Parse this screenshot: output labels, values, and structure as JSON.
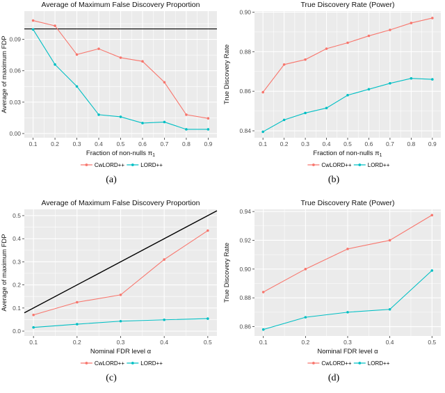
{
  "colors": {
    "cwlord": "#F8766D",
    "lord": "#00BFC4",
    "panel_bg": "#EBEBEB",
    "grid": "#FFFFFF",
    "axis_text": "#4D4D4D",
    "tick_mark": "#333333",
    "ref_line": "#000000",
    "title_text": "#111111",
    "background": "#FFFFFF"
  },
  "legend": {
    "items": [
      {
        "label": "CwLORD++",
        "color": "#F8766D"
      },
      {
        "label": "LORD++",
        "color": "#00BFC4"
      }
    ],
    "position": "bottom"
  },
  "chart_data": [
    {
      "type": "line",
      "panel": "a",
      "caption": "(a)",
      "title": "Average of Maximum False Discovery Proportion",
      "xlabel": "Fraction of non-nulls π",
      "xlabel_sub": "1",
      "ylabel": "Average of maximum FDP",
      "x": [
        0.1,
        0.2,
        0.3,
        0.4,
        0.5,
        0.6,
        0.7,
        0.8,
        0.9
      ],
      "series": [
        {
          "name": "CwLORD++",
          "color": "#F8766D",
          "values": [
            0.108,
            0.103,
            0.0755,
            0.081,
            0.0725,
            0.069,
            0.049,
            0.018,
            0.0145
          ]
        },
        {
          "name": "LORD++",
          "color": "#00BFC4",
          "values": [
            0.0995,
            0.066,
            0.045,
            0.018,
            0.016,
            0.01,
            0.011,
            0.004,
            0.004
          ]
        }
      ],
      "ref_hline": 0.1,
      "ref_abline": false,
      "xlim": [
        0.06,
        0.94
      ],
      "ylim": [
        -0.004,
        0.117
      ],
      "xticks": [
        0.1,
        0.2,
        0.3,
        0.4,
        0.5,
        0.6,
        0.7,
        0.8,
        0.9
      ],
      "xtick_labels": [
        "0.1",
        "0.2",
        "0.3",
        "0.4",
        "0.5",
        "0.6",
        "0.7",
        "0.8",
        "0.9"
      ],
      "yticks": [
        0.0,
        0.03,
        0.06,
        0.09
      ],
      "ytick_labels": [
        "0.00",
        "0.03",
        "0.06",
        "0.09"
      ],
      "grid": true,
      "legend_position": "bottom"
    },
    {
      "type": "line",
      "panel": "b",
      "caption": "(b)",
      "title": "True Discovery Rate (Power)",
      "xlabel": "Fraction of non-nulls π",
      "xlabel_sub": "1",
      "ylabel": "True Discovery Rate",
      "x": [
        0.1,
        0.2,
        0.3,
        0.4,
        0.5,
        0.6,
        0.7,
        0.8,
        0.9
      ],
      "series": [
        {
          "name": "CwLORD++",
          "color": "#F8766D",
          "values": [
            0.8595,
            0.8735,
            0.876,
            0.8815,
            0.8845,
            0.888,
            0.891,
            0.8945,
            0.897
          ]
        },
        {
          "name": "LORD++",
          "color": "#00BFC4",
          "values": [
            0.8395,
            0.8455,
            0.849,
            0.8515,
            0.858,
            0.861,
            0.864,
            0.8665,
            0.866
          ]
        }
      ],
      "ref_hline": null,
      "ref_abline": false,
      "xlim": [
        0.06,
        0.94
      ],
      "ylim": [
        0.8365,
        0.9005
      ],
      "xticks": [
        0.1,
        0.2,
        0.3,
        0.4,
        0.5,
        0.6,
        0.7,
        0.8,
        0.9
      ],
      "xtick_labels": [
        "0.1",
        "0.2",
        "0.3",
        "0.4",
        "0.5",
        "0.6",
        "0.7",
        "0.8",
        "0.9"
      ],
      "yticks": [
        0.84,
        0.86,
        0.88,
        0.9
      ],
      "ytick_labels": [
        "0.84",
        "0.86",
        "0.88",
        "0.90"
      ],
      "grid": true,
      "legend_position": "bottom"
    },
    {
      "type": "line",
      "panel": "c",
      "caption": "(c)",
      "title": "Average of Maximum False Discovery Proportion",
      "xlabel": "Nominal FDR level α",
      "xlabel_sub": "",
      "ylabel": "Average of maximum FDP",
      "x": [
        0.1,
        0.2,
        0.3,
        0.4,
        0.5
      ],
      "series": [
        {
          "name": "CwLORD++",
          "color": "#F8766D",
          "values": [
            0.07,
            0.125,
            0.157,
            0.31,
            0.435
          ]
        },
        {
          "name": "LORD++",
          "color": "#00BFC4",
          "values": [
            0.016,
            0.03,
            0.043,
            0.049,
            0.054
          ]
        }
      ],
      "ref_hline": null,
      "ref_abline": true,
      "xlim": [
        0.079,
        0.521
      ],
      "ylim": [
        -0.021,
        0.527
      ],
      "xticks": [
        0.1,
        0.2,
        0.3,
        0.4,
        0.5
      ],
      "xtick_labels": [
        "0.1",
        "0.2",
        "0.3",
        "0.4",
        "0.5"
      ],
      "yticks": [
        0.0,
        0.1,
        0.2,
        0.3,
        0.4,
        0.5
      ],
      "ytick_labels": [
        "0.0",
        "0.1",
        "0.2",
        "0.3",
        "0.4",
        "0.5"
      ],
      "grid": true,
      "legend_position": "bottom"
    },
    {
      "type": "line",
      "panel": "d",
      "caption": "(d)",
      "title": "True Discovery Rate (Power)",
      "xlabel": "Nominal FDR level α",
      "xlabel_sub": "",
      "ylabel": "True Discovery Rate",
      "x": [
        0.1,
        0.2,
        0.3,
        0.4,
        0.5
      ],
      "series": [
        {
          "name": "CwLORD++",
          "color": "#F8766D",
          "values": [
            0.884,
            0.9,
            0.914,
            0.92,
            0.9375
          ]
        },
        {
          "name": "LORD++",
          "color": "#00BFC4",
          "values": [
            0.858,
            0.8665,
            0.87,
            0.872,
            0.899
          ]
        }
      ],
      "ref_hline": null,
      "ref_abline": false,
      "xlim": [
        0.079,
        0.521
      ],
      "ylim": [
        0.8535,
        0.9415
      ],
      "xticks": [
        0.1,
        0.2,
        0.3,
        0.4,
        0.5
      ],
      "xtick_labels": [
        "0.1",
        "0.2",
        "0.3",
        "0.4",
        "0.5"
      ],
      "yticks": [
        0.86,
        0.88,
        0.9,
        0.92,
        0.94
      ],
      "ytick_labels": [
        "0.86",
        "0.88",
        "0.90",
        "0.92",
        "0.94"
      ],
      "grid": true,
      "legend_position": "bottom"
    }
  ]
}
